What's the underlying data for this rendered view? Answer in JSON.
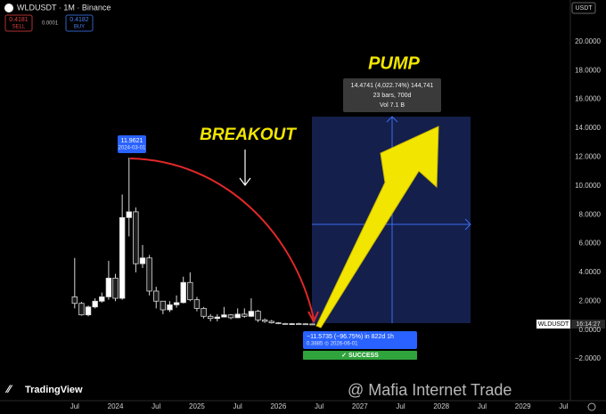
{
  "header": {
    "symbol": "WLDUSDT · 1M · Binance",
    "sell_price": "0.4181",
    "sell": "SELL",
    "spread": "0.0001",
    "buy_price": "0.4182",
    "buy": "BUY",
    "currency": "USDT"
  },
  "brand": "TradingView",
  "watermark": "@ Mafia Internet Trade",
  "chart_data": {
    "type": "candlestick",
    "x": [
      "2023-07",
      "2023-08",
      "2023-09",
      "2023-10",
      "2023-11",
      "2023-12",
      "2024-01",
      "2024-02",
      "2024-03",
      "2024-04",
      "2024-05",
      "2024-06",
      "2024-07",
      "2024-08",
      "2024-09",
      "2024-10",
      "2024-11",
      "2024-12",
      "2025-01",
      "2025-02",
      "2025-03",
      "2025-04",
      "2025-05",
      "2025-06",
      "2025-07",
      "2025-08",
      "2025-09",
      "2025-10",
      "2025-11",
      "2025-12",
      "2026-01",
      "2026-02",
      "2026-03",
      "2026-04",
      "2026-05",
      "2026-06"
    ],
    "open": [
      2.3,
      1.85,
      1.05,
      1.6,
      2.0,
      2.3,
      3.6,
      2.2,
      7.8,
      8.2,
      4.6,
      5.0,
      2.7,
      2.0,
      1.4,
      1.75,
      1.9,
      3.3,
      2.1,
      1.5,
      0.95,
      0.8,
      0.9,
      1.05,
      0.85,
      1.1,
      0.95,
      1.3,
      0.7,
      0.6,
      0.5,
      0.45,
      0.42,
      0.44,
      0.43,
      0.42
    ],
    "high": [
      5.0,
      1.95,
      1.7,
      2.2,
      2.6,
      4.8,
      3.9,
      9.4,
      11.9621,
      8.5,
      5.9,
      5.2,
      3.0,
      2.0,
      2.0,
      2.4,
      3.7,
      4.0,
      2.3,
      1.6,
      1.1,
      1.1,
      1.6,
      1.1,
      1.5,
      1.5,
      2.2,
      1.4,
      0.8,
      0.7,
      0.55,
      0.5,
      0.48,
      0.5,
      0.47,
      0.45
    ],
    "low": [
      1.5,
      1.0,
      0.95,
      1.5,
      1.9,
      2.1,
      2.0,
      2.1,
      6.5,
      4.0,
      4.3,
      2.4,
      1.5,
      1.1,
      1.25,
      1.55,
      1.85,
      2.0,
      1.3,
      0.8,
      0.6,
      0.6,
      0.9,
      0.75,
      0.85,
      0.85,
      0.9,
      0.55,
      0.5,
      0.45,
      0.4,
      0.38,
      0.39,
      0.4,
      0.39,
      0.3885
    ],
    "close": [
      1.85,
      1.05,
      1.6,
      2.0,
      2.3,
      3.6,
      2.2,
      7.8,
      8.2,
      4.6,
      5.0,
      2.7,
      2.0,
      1.4,
      1.75,
      1.9,
      3.3,
      2.1,
      1.5,
      0.95,
      0.8,
      0.9,
      1.05,
      0.85,
      1.1,
      0.95,
      1.3,
      0.7,
      0.6,
      0.5,
      0.45,
      0.42,
      0.44,
      0.43,
      0.42,
      0.4182
    ],
    "up_color": "#ffffff",
    "down_color": "#1c1c1c",
    "wick_color": "#d8d8d8",
    "ylim": [
      -4.9,
      21.35
    ],
    "yticks": [
      {
        "value": 20,
        "label": "20.0000"
      },
      {
        "value": 18,
        "label": "18.0000"
      },
      {
        "value": 16,
        "label": "16.0000"
      },
      {
        "value": 14,
        "label": "14.0000"
      },
      {
        "value": 12,
        "label": "12.0000"
      },
      {
        "value": 10,
        "label": "10.0000"
      },
      {
        "value": 8,
        "label": "8.0000"
      },
      {
        "value": 6,
        "label": "6.0000"
      },
      {
        "value": 4,
        "label": "4.0000"
      },
      {
        "value": 2,
        "label": "2.0000"
      },
      {
        "value": 0,
        "label": "0.0000"
      },
      {
        "value": -2,
        "label": "−2.0000"
      }
    ],
    "xlim": [
      "2022-08",
      "2029-08"
    ],
    "xticks": [
      {
        "value": "2023-07",
        "label": "Jul"
      },
      {
        "value": "2024-01",
        "label": "2024"
      },
      {
        "value": "2024-07",
        "label": "Jul"
      },
      {
        "value": "2025-01",
        "label": "2025"
      },
      {
        "value": "2025-07",
        "label": "Jul"
      },
      {
        "value": "2026-01",
        "label": "2026"
      },
      {
        "value": "2026-07",
        "label": "Jul"
      },
      {
        "value": "2027-01",
        "label": "2027"
      },
      {
        "value": "2027-07",
        "label": "Jul"
      },
      {
        "value": "2028-01",
        "label": "2028"
      },
      {
        "value": "2028-07",
        "label": "Jul"
      },
      {
        "value": "2029-01",
        "label": "2029"
      },
      {
        "value": "2029-07",
        "label": "Jul"
      }
    ],
    "grid": false,
    "symbol_badge": "WLDUSDT",
    "countdown": "16:14:27",
    "annotations": {
      "high_label": "11.9621",
      "high_date": "2024-03-01",
      "breakout": "BREAKOUT",
      "pump": "PUMP",
      "measure": [
        "14.4741 (4,022.74%) 144,741",
        "23 bars, 700d",
        "Vol 7.1 B"
      ],
      "drop": "−11.5735 (−96.75%) in 822d 1h",
      "low": "0.3885 ⊙ 2026-06-01",
      "success": "✓ SUCCESS"
    }
  }
}
